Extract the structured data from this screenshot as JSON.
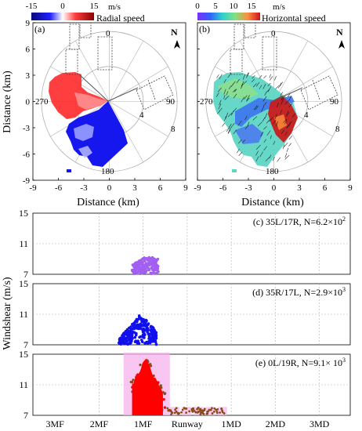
{
  "top": {
    "shared": {
      "x_ticks": [
        "-9",
        "-6",
        "-3",
        "0",
        "3",
        "6",
        "9"
      ],
      "y_ticks": [
        "9",
        "6",
        "3",
        "0",
        "-3",
        "-6",
        "-9"
      ],
      "x_label": "Distance (km)",
      "y_label": "Distance (km)",
      "range_labels": [
        "4",
        "8"
      ],
      "azimuth_labels": [
        "0",
        "90",
        "180",
        "270"
      ],
      "north_label": "N"
    },
    "panel_a": {
      "tag": "(a)",
      "colorbar_ticks": [
        "-15",
        "0",
        "15"
      ],
      "colorbar_unit": "m/s",
      "colorbar_label": "Radial speed"
    },
    "panel_b": {
      "tag": "(b)",
      "colorbar_ticks": [
        "0",
        "5",
        "10",
        "15"
      ],
      "colorbar_unit": "m/s",
      "colorbar_label": "Horizontal speed"
    }
  },
  "bottom": {
    "shared_ylabel": "Windshear (m/s)",
    "x_ticks": [
      "3MF",
      "2MF",
      "1MF",
      "Runway",
      "1MD",
      "2MD",
      "3MD"
    ]
  },
  "colors": {
    "grid_dash": "#b0b0b0",
    "purple": "#a35ff2",
    "blue": "#1010ee",
    "red": "#ff0000",
    "brown": "#8b4a1c",
    "pink": "#f7b3ee"
  },
  "chart_data": [
    {
      "type": "scatter",
      "title": "",
      "series": [],
      "xlabel": "Distance (km)",
      "ylabel": "Distance (km)",
      "xlim": [
        -9,
        9
      ],
      "ylim": [
        -9,
        9
      ],
      "colorbar": {
        "label": "Radial speed",
        "unit": "m/s",
        "range": [
          -15,
          15
        ]
      },
      "note": "(a) radial speed field on radar range rings (4 km, 8 km)"
    },
    {
      "type": "scatter",
      "title": "",
      "series": [],
      "xlabel": "Distance (km)",
      "ylabel": "Distance (km)",
      "xlim": [
        -9,
        9
      ],
      "ylim": [
        -9,
        9
      ],
      "colorbar": {
        "label": "Horizontal speed",
        "unit": "m/s",
        "range": [
          0,
          15
        ]
      },
      "note": "(b) horizontal wind vectors"
    },
    {
      "type": "scatter",
      "panel_label": "(c) 35L/17R, N=6.2×10",
      "exponent": "2",
      "categories": [
        "3MF",
        "2MF",
        "1MF",
        "Runway",
        "1MD",
        "2MD",
        "3MD"
      ],
      "ylim": [
        7,
        15
      ],
      "yticks": [
        "7",
        "11",
        "15"
      ],
      "clusters": [
        {
          "color": "purple",
          "x_from": 1.75,
          "x_to": 2.35,
          "y_from": 7,
          "y_to": 9.2,
          "count": 620
        }
      ]
    },
    {
      "type": "scatter",
      "panel_label": "(d) 35R/17L, N=2.9×10",
      "exponent": "3",
      "categories": [
        "3MF",
        "2MF",
        "1MF",
        "Runway",
        "1MD",
        "2MD",
        "3MD"
      ],
      "ylim": [
        7,
        15
      ],
      "yticks": [
        "7",
        "11",
        "15"
      ],
      "clusters": [
        {
          "color": "blue",
          "x_from": 1.45,
          "x_to": 2.3,
          "y_from": 7,
          "y_to": 11,
          "count": 2900
        }
      ]
    },
    {
      "type": "scatter",
      "panel_label": "(e) 0L/19R, N=9.1× 10",
      "exponent": "3",
      "categories": [
        "3MF",
        "2MF",
        "1MF",
        "Runway",
        "1MD",
        "2MD",
        "3MD"
      ],
      "ylim": [
        7,
        15
      ],
      "yticks": [
        "7",
        "11",
        "15"
      ],
      "clusters": [
        {
          "color": "red",
          "x_from": 1.7,
          "x_to": 2.5,
          "y_from": 7,
          "y_to": 15,
          "count": 9100
        },
        {
          "color": "brown",
          "x_from": 2.5,
          "x_to": 3.85,
          "y_from": 7,
          "y_to": 8,
          "count": 0
        }
      ]
    }
  ]
}
